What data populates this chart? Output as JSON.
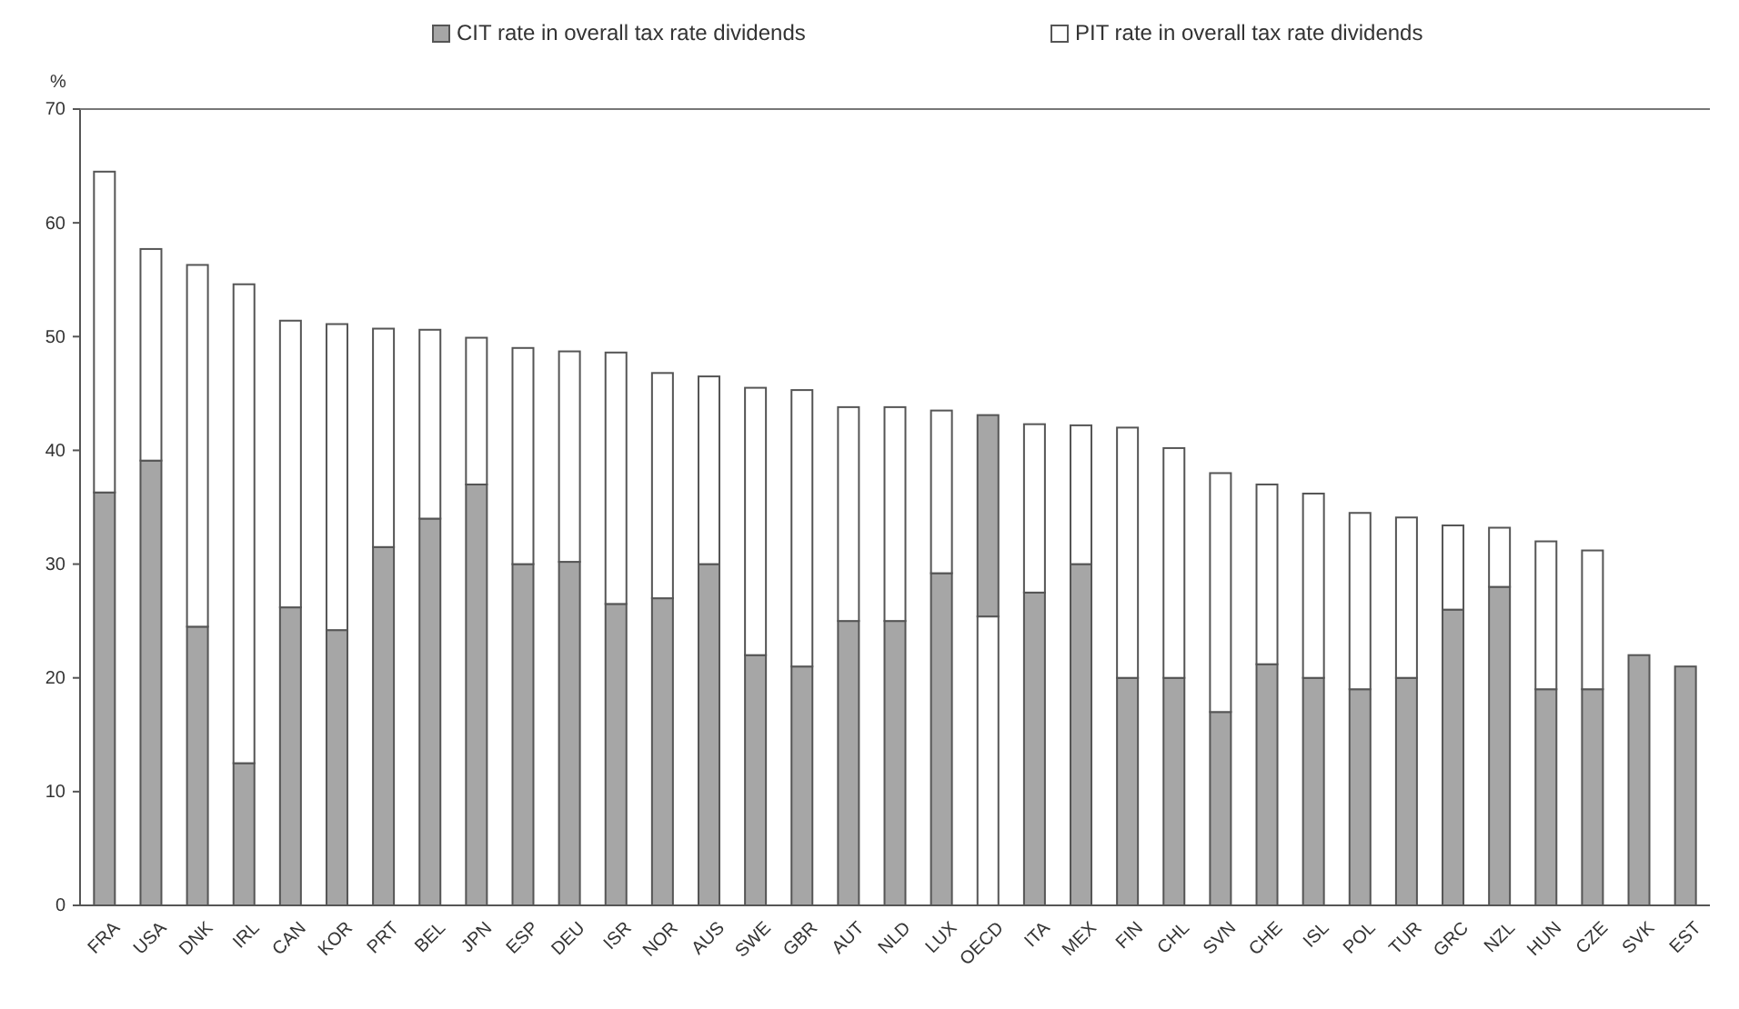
{
  "chart_data": {
    "type": "bar",
    "stacked": true,
    "ylabel": "%",
    "legend": "top",
    "categories": [
      "FRA",
      "USA",
      "DNK",
      "IRL",
      "CAN",
      "KOR",
      "PRT",
      "BEL",
      "JPN",
      "ESP",
      "DEU",
      "ISR",
      "NOR",
      "AUS",
      "SWE",
      "GBR",
      "AUT",
      "NLD",
      "LUX",
      "OECD",
      "ITA",
      "MEX",
      "FIN",
      "CHL",
      "SVN",
      "CHE",
      "ISL",
      "POL",
      "TUR",
      "GRC",
      "NZL",
      "HUN",
      "CZE",
      "SVK",
      "EST"
    ],
    "series": [
      {
        "name": "CIT rate in overall tax rate dividends",
        "color": "#a6a6a6",
        "colors": [
          "#a6a6a6",
          "#a6a6a6",
          "#a6a6a6",
          "#a6a6a6",
          "#a6a6a6",
          "#a6a6a6",
          "#a6a6a6",
          "#a6a6a6",
          "#a6a6a6",
          "#a6a6a6",
          "#a6a6a6",
          "#a6a6a6",
          "#a6a6a6",
          "#a6a6a6",
          "#a6a6a6",
          "#a6a6a6",
          "#a6a6a6",
          "#a6a6a6",
          "#a6a6a6",
          "#ffffff",
          "#a6a6a6",
          "#a6a6a6",
          "#a6a6a6",
          "#a6a6a6",
          "#a6a6a6",
          "#a6a6a6",
          "#a6a6a6",
          "#a6a6a6",
          "#a6a6a6",
          "#a6a6a6",
          "#a6a6a6",
          "#a6a6a6",
          "#a6a6a6",
          "#a6a6a6",
          "#a6a6a6"
        ],
        "values": [
          36.3,
          39.1,
          24.5,
          12.5,
          26.2,
          24.2,
          31.5,
          34.0,
          37.0,
          30.0,
          30.2,
          26.5,
          27.0,
          30.0,
          22.0,
          21.0,
          25.0,
          25.0,
          29.2,
          25.4,
          27.5,
          30.0,
          20.0,
          20.0,
          17.0,
          21.2,
          20.0,
          19.0,
          20.0,
          26.0,
          28.0,
          19.0,
          19.0,
          22.0,
          21.0
        ]
      },
      {
        "name": "PIT rate in overall tax rate dividends",
        "color": "#ffffff",
        "colors": [
          "#ffffff",
          "#ffffff",
          "#ffffff",
          "#ffffff",
          "#ffffff",
          "#ffffff",
          "#ffffff",
          "#ffffff",
          "#ffffff",
          "#ffffff",
          "#ffffff",
          "#ffffff",
          "#ffffff",
          "#ffffff",
          "#ffffff",
          "#ffffff",
          "#ffffff",
          "#ffffff",
          "#ffffff",
          "#a6a6a6",
          "#ffffff",
          "#ffffff",
          "#ffffff",
          "#ffffff",
          "#ffffff",
          "#ffffff",
          "#ffffff",
          "#ffffff",
          "#ffffff",
          "#ffffff",
          "#ffffff",
          "#ffffff",
          "#ffffff",
          "#ffffff",
          "#ffffff"
        ],
        "values": [
          28.2,
          18.6,
          31.8,
          42.1,
          25.2,
          26.9,
          19.2,
          16.6,
          12.9,
          19.0,
          18.5,
          22.1,
          19.8,
          16.5,
          23.5,
          24.3,
          18.8,
          18.8,
          14.3,
          17.7,
          14.8,
          12.2,
          22.0,
          20.2,
          21.0,
          15.8,
          16.2,
          15.5,
          14.1,
          7.4,
          5.2,
          13.0,
          12.2,
          0,
          0
        ]
      }
    ],
    "ylim": [
      0,
      70
    ],
    "yticks": [
      0,
      10,
      20,
      30,
      40,
      50,
      60,
      70
    ],
    "grid": false
  }
}
